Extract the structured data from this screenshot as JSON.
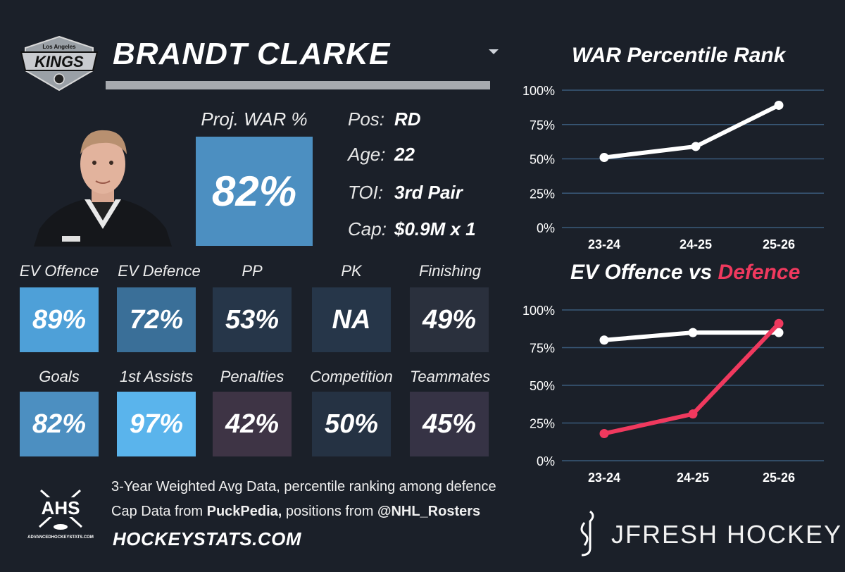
{
  "team": {
    "logo_text_top": "Los Angeles",
    "logo_text": "KINGS"
  },
  "player": {
    "name": "BRANDT CLARKE",
    "proj_war_label": "Proj. WAR %",
    "proj_war_value": "82%",
    "info": [
      {
        "label": "Pos:",
        "value": "RD"
      },
      {
        "label": "Age:",
        "value": "22"
      },
      {
        "label": "TOI:",
        "value": "3rd Pair"
      },
      {
        "label": "Cap:",
        "value": "$0.9M x 1"
      }
    ]
  },
  "tiles": [
    {
      "label": "EV Offence",
      "value": "89%",
      "color": "#4ea0d8"
    },
    {
      "label": "EV Defence",
      "value": "72%",
      "color": "#3a6f98"
    },
    {
      "label": "PP",
      "value": "53%",
      "color": "#263649"
    },
    {
      "label": "PK",
      "value": "NA",
      "color": "#263649"
    },
    {
      "label": "Finishing",
      "value": "49%",
      "color": "#2a303d"
    },
    {
      "label": "Goals",
      "value": "82%",
      "color": "#4c8fc1"
    },
    {
      "label": "1st Assists",
      "value": "97%",
      "color": "#5ab4ec"
    },
    {
      "label": "Penalties",
      "value": "42%",
      "color": "#3e3445"
    },
    {
      "label": "Competition",
      "value": "50%",
      "color": "#253243"
    },
    {
      "label": "Teammates",
      "value": "45%",
      "color": "#363345"
    }
  ],
  "footer": {
    "line1": "3-Year Weighted Avg Data, percentile ranking among defence",
    "line2_a": "Cap Data from ",
    "line2_b": "PuckPedia,",
    "line2_c": " positions from ",
    "line2_d": "@NHL_Rosters",
    "site": "HOCKEYSTATS.COM",
    "ahs_logo": "AHS",
    "ahs_url": "ADVANCEDHOCKEYSTATS.COM",
    "brand": "JFRESH HOCKEY"
  },
  "colors": {
    "accent_red": "#f0395e",
    "line_white": "#ffffff",
    "grid": "#3a5a7a"
  },
  "chart_data": [
    {
      "type": "line",
      "title": "WAR Percentile Rank",
      "categories": [
        "23-24",
        "24-25",
        "25-26"
      ],
      "series": [
        {
          "name": "WAR",
          "values": [
            51,
            59,
            89
          ],
          "color": "#ffffff"
        }
      ],
      "ylim": [
        0,
        100
      ],
      "yticks": [
        "0%",
        "25%",
        "50%",
        "75%",
        "100%"
      ]
    },
    {
      "type": "line",
      "title": "EV Offence vs Defence",
      "title_a": "EV Offence vs ",
      "title_b": "Defence",
      "categories": [
        "23-24",
        "24-25",
        "25-26"
      ],
      "series": [
        {
          "name": "EV Offence",
          "values": [
            80,
            85,
            85
          ],
          "color": "#ffffff"
        },
        {
          "name": "EV Defence",
          "values": [
            18,
            31,
            91
          ],
          "color": "#f0395e"
        }
      ],
      "ylim": [
        0,
        100
      ],
      "yticks": [
        "0%",
        "25%",
        "50%",
        "75%",
        "100%"
      ]
    }
  ]
}
